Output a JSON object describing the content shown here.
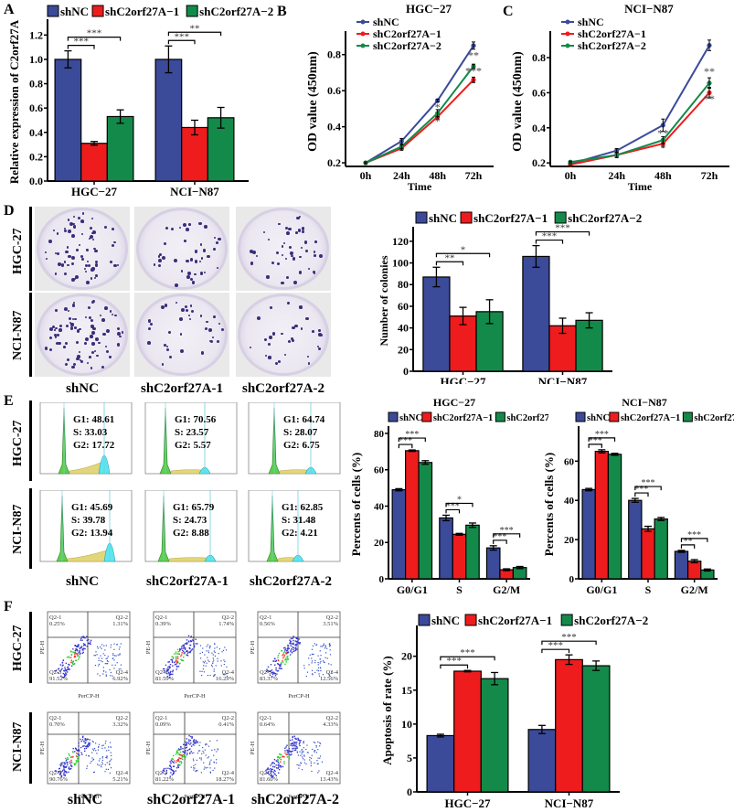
{
  "colors": {
    "shNC": "#3b4a99",
    "shC2orf27A_1": "#ee1c1c",
    "shC2orf27A_2": "#148a4a"
  },
  "legend": [
    "shNC",
    "shC2orf27A−1",
    "shC2orf27A−2"
  ],
  "panels": {
    "A": "A",
    "B": "B",
    "C": "C",
    "D": "D",
    "E": "E",
    "F": "F"
  },
  "cell_lines": [
    "HGC-27",
    "NCI-N87"
  ],
  "groups": [
    "shNC",
    "shC2orf27A-1",
    "shC2orf27A-2"
  ],
  "flow_cell_cycle": [
    {
      "line": "HGC-27",
      "group": "shNC",
      "G1": "G1: 48.61",
      "S": "S: 33.03",
      "G2": "G2: 17.72"
    },
    {
      "line": "HGC-27",
      "group": "shC2orf27A-1",
      "G1": "G1: 70.56",
      "S": "S: 23.57",
      "G2": "G2: 5.57"
    },
    {
      "line": "HGC-27",
      "group": "shC2orf27A-2",
      "G1": "G1: 64.74",
      "S": "S: 28.07",
      "G2": "G2: 6.75"
    },
    {
      "line": "NCI-N87",
      "group": "shNC",
      "G1": "G1: 45.69",
      "S": "S: 39.78",
      "G2": "G2: 13.94"
    },
    {
      "line": "NCI-N87",
      "group": "shC2orf27A-1",
      "G1": "G1: 65.79",
      "S": "S: 24.73",
      "G2": "G2: 8.88"
    },
    {
      "line": "NCI-N87",
      "group": "shC2orf27A-2",
      "G1": "G1: 62.85",
      "S": "S: 31.48",
      "G2": "G2: 4.21"
    }
  ],
  "flow_apoptosis": [
    {
      "line": "HGC-27",
      "group": "shNC",
      "q1": "0.25%",
      "q2": "1.31%",
      "q3": "91.52%",
      "q4": "6.92%"
    },
    {
      "line": "HGC-27",
      "group": "shC2orf27A-1",
      "q1": "0.39%",
      "q2": "1.74%",
      "q3": "81.59%",
      "q4": "16.29%"
    },
    {
      "line": "HGC-27",
      "group": "shC2orf27A-2",
      "q1": "0.56%",
      "q2": "3.51%",
      "q3": "83.37%",
      "q4": "12.56%"
    },
    {
      "line": "NCI-N87",
      "group": "shNC",
      "q1": "0.70%",
      "q2": "3.32%",
      "q3": "90.76%",
      "q4": "5.21%"
    },
    {
      "line": "NCI-N87",
      "group": "shC2orf27A-1",
      "q1": "0.09%",
      "q2": "0.41%",
      "q3": "81.22%",
      "q4": "18.27%"
    },
    {
      "line": "NCI-N87",
      "group": "shC2orf27A-2",
      "q1": "0.64%",
      "q2": "4.33%",
      "q3": "81.60%",
      "q4": "13.43%"
    }
  ],
  "quadrant_names": [
    "Q2-1",
    "Q2-2",
    "Q2-3",
    "Q2-4"
  ],
  "flow_axis": {
    "x": "PerCP-H",
    "y": "PE-H"
  },
  "chart_data": [
    {
      "id": "A",
      "type": "bar",
      "title": "",
      "xlabel": "",
      "ylabel": "Relative expression of C2orf27A",
      "categories": [
        "HGC−27",
        "NCI−N87"
      ],
      "ylim": [
        0,
        1.3
      ],
      "yticks": [
        0.0,
        0.2,
        0.4,
        0.6,
        0.8,
        1.0,
        1.2
      ],
      "tick_format": "1",
      "series": [
        {
          "name": "shNC",
          "values": [
            1.0,
            1.0
          ],
          "err": [
            0.07,
            0.11
          ]
        },
        {
          "name": "shC2orf27A−1",
          "values": [
            0.31,
            0.44
          ],
          "err": [
            0.015,
            0.06
          ]
        },
        {
          "name": "shC2orf27A−2",
          "values": [
            0.53,
            0.52
          ],
          "err": [
            0.055,
            0.085
          ]
        }
      ],
      "significance": [
        {
          "cat": 0,
          "to": 1,
          "label": "***"
        },
        {
          "cat": 0,
          "to": 2,
          "label": "***"
        },
        {
          "cat": 1,
          "to": 1,
          "label": "***"
        },
        {
          "cat": 1,
          "to": 2,
          "label": "**"
        }
      ],
      "legend": "top"
    },
    {
      "id": "B",
      "type": "line",
      "title": "HGC−27",
      "xlabel": "Time",
      "ylabel": "OD value (450nm)",
      "x": [
        "0h",
        "24h",
        "48h",
        "72h"
      ],
      "ylim": [
        0.18,
        0.9
      ],
      "yticks": [
        0.2,
        0.4,
        0.6,
        0.8
      ],
      "series": [
        {
          "name": "shNC",
          "values": [
            0.2,
            0.32,
            0.545,
            0.85
          ],
          "err": [
            0.005,
            0.015,
            0.008,
            0.02
          ]
        },
        {
          "name": "shC2orf27A−1",
          "values": [
            0.2,
            0.28,
            0.455,
            0.66
          ],
          "err": [
            0.005,
            0.01,
            0.012,
            0.015
          ]
        },
        {
          "name": "shC2orf27A−2",
          "values": [
            0.2,
            0.29,
            0.475,
            0.735
          ],
          "err": [
            0.005,
            0.01,
            0.02,
            0.012
          ]
        }
      ],
      "annotations": [
        {
          "x": 2,
          "y": 0.49,
          "label": "*"
        },
        {
          "x": 2,
          "y": 0.41,
          "label": "*"
        },
        {
          "x": 3,
          "y": 0.775,
          "label": "**"
        },
        {
          "x": 3,
          "y": 0.69,
          "label": "***"
        }
      ],
      "legend": "top-left"
    },
    {
      "id": "C",
      "type": "line",
      "title": "NCI−N87",
      "xlabel": "Time",
      "ylabel": "OD value (450nm)",
      "x": [
        "0h",
        "24h",
        "48h",
        "72h"
      ],
      "ylim": [
        0.18,
        0.92
      ],
      "yticks": [
        0.2,
        0.4,
        0.6,
        0.8
      ],
      "series": [
        {
          "name": "shNC",
          "values": [
            0.195,
            0.27,
            0.415,
            0.87
          ],
          "err": [
            0.005,
            0.012,
            0.035,
            0.03
          ]
        },
        {
          "name": "shC2orf27A−1",
          "values": [
            0.19,
            0.245,
            0.31,
            0.6
          ],
          "err": [
            0.005,
            0.01,
            0.02,
            0.03
          ]
        },
        {
          "name": "shC2orf27A−2",
          "values": [
            0.205,
            0.245,
            0.33,
            0.655
          ],
          "err": [
            0.005,
            0.015,
            0.02,
            0.03
          ]
        }
      ],
      "annotations": [
        {
          "x": 2,
          "y": 0.35,
          "label": "**"
        },
        {
          "x": 2,
          "y": 0.265,
          "label": "*"
        },
        {
          "x": 3,
          "y": 0.7,
          "label": "**"
        },
        {
          "x": 3,
          "y": 0.545,
          "label": "**"
        }
      ],
      "legend": "top-left"
    },
    {
      "id": "D",
      "type": "bar",
      "title": "",
      "xlabel": "",
      "ylabel": "Number of colonies",
      "categories": [
        "HGC−27",
        "NCI−N87"
      ],
      "ylim": [
        0,
        130
      ],
      "yticks": [
        0,
        20,
        40,
        60,
        80,
        100,
        120
      ],
      "tick_format": "0",
      "series": [
        {
          "name": "shNC",
          "values": [
            87,
            106
          ],
          "err": [
            9,
            10
          ]
        },
        {
          "name": "shC2orf27A−1",
          "values": [
            51,
            42
          ],
          "err": [
            8,
            7
          ]
        },
        {
          "name": "shC2orf27A−2",
          "values": [
            55,
            47
          ],
          "err": [
            11,
            7
          ]
        }
      ],
      "significance": [
        {
          "cat": 0,
          "to": 1,
          "label": "**"
        },
        {
          "cat": 0,
          "to": 2,
          "label": "*"
        },
        {
          "cat": 1,
          "to": 1,
          "label": "***"
        },
        {
          "cat": 1,
          "to": 2,
          "label": "***"
        }
      ],
      "legend": "top"
    },
    {
      "id": "E1",
      "type": "bar",
      "title": "HGC−27",
      "xlabel": "",
      "ylabel": "Percents of cells (%)",
      "categories": [
        "G0/G1",
        "S",
        "G2/M"
      ],
      "ylim": [
        0,
        82
      ],
      "yticks": [
        0,
        20,
        40,
        60,
        80
      ],
      "tick_format": "0",
      "series": [
        {
          "name": "shNC",
          "values": [
            49,
            33.5,
            17
          ],
          "err": [
            0.6,
            1.5,
            1.2
          ]
        },
        {
          "name": "shC2orf27A−1",
          "values": [
            70.5,
            24.5,
            5
          ],
          "err": [
            0.4,
            0.5,
            0.5
          ]
        },
        {
          "name": "shC2orf27A−2",
          "values": [
            64,
            29.5,
            6.2
          ],
          "err": [
            1,
            1.2,
            0.6
          ]
        }
      ],
      "significance": [
        {
          "cat": 0,
          "to": 1,
          "label": "***"
        },
        {
          "cat": 0,
          "to": 2,
          "label": "***"
        },
        {
          "cat": 1,
          "to": 1,
          "label": "***"
        },
        {
          "cat": 1,
          "to": 2,
          "label": "*"
        },
        {
          "cat": 2,
          "to": 1,
          "label": "***"
        },
        {
          "cat": 2,
          "to": 2,
          "label": "***"
        }
      ],
      "legend": "top"
    },
    {
      "id": "E2",
      "type": "bar",
      "title": "NCI−N87",
      "xlabel": "",
      "ylabel": "Percents of cells (%)",
      "categories": [
        "G0/G1",
        "S",
        "G2/M"
      ],
      "ylim": [
        0,
        76
      ],
      "yticks": [
        0,
        20,
        40,
        60
      ],
      "tick_format": "0",
      "series": [
        {
          "name": "shNC",
          "values": [
            45.5,
            40,
            14
          ],
          "err": [
            0.6,
            1,
            0.5
          ]
        },
        {
          "name": "shC2orf27A−1",
          "values": [
            65,
            25.5,
            9
          ],
          "err": [
            0.8,
            1.3,
            0.8
          ]
        },
        {
          "name": "shC2orf27A−2",
          "values": [
            63.5,
            30.5,
            4.5
          ],
          "err": [
            0.5,
            0.8,
            0.5
          ]
        }
      ],
      "significance": [
        {
          "cat": 0,
          "to": 1,
          "label": "***"
        },
        {
          "cat": 0,
          "to": 2,
          "label": "***"
        },
        {
          "cat": 1,
          "to": 1,
          "label": "***"
        },
        {
          "cat": 1,
          "to": 2,
          "label": "***"
        },
        {
          "cat": 2,
          "to": 1,
          "label": "**"
        },
        {
          "cat": 2,
          "to": 2,
          "label": "***"
        }
      ],
      "legend": "top"
    },
    {
      "id": "F",
      "type": "bar",
      "title": "",
      "xlabel": "",
      "ylabel": "Apoptosis of rate (%)",
      "categories": [
        "HGC−27",
        "NCI−N87"
      ],
      "ylim": [
        0,
        24
      ],
      "yticks": [
        0,
        5,
        10,
        15,
        20
      ],
      "tick_format": "0",
      "series": [
        {
          "name": "shNC",
          "values": [
            8.3,
            9.2
          ],
          "err": [
            0.2,
            0.6
          ]
        },
        {
          "name": "shC2orf27A−1",
          "values": [
            17.8,
            19.5
          ],
          "err": [
            0.1,
            0.7
          ]
        },
        {
          "name": "shC2orf27A−2",
          "values": [
            16.7,
            18.6
          ],
          "err": [
            0.9,
            0.7
          ]
        }
      ],
      "significance": [
        {
          "cat": 0,
          "to": 1,
          "label": "***"
        },
        {
          "cat": 0,
          "to": 2,
          "label": "***"
        },
        {
          "cat": 1,
          "to": 1,
          "label": "***"
        },
        {
          "cat": 1,
          "to": 2,
          "label": "***"
        }
      ],
      "legend": "top"
    }
  ]
}
